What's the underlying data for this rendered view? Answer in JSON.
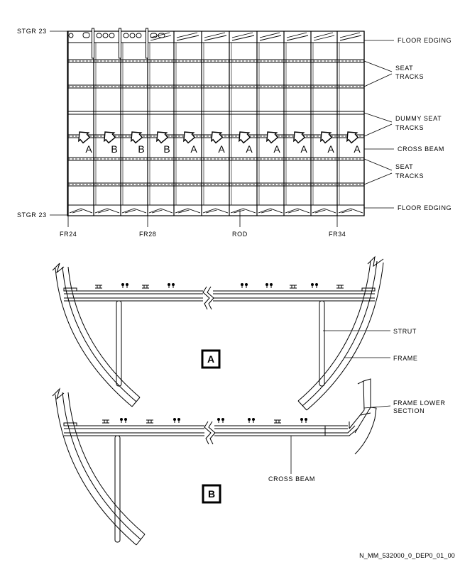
{
  "top_view": {
    "stringer_top": "STGR 23",
    "stringer_bottom": "STGR 23",
    "callouts": {
      "floor_edging_top": "FLOOR EDGING",
      "seat_tracks_upper": [
        "SEAT",
        "TRACKS"
      ],
      "dummy_seat_tracks": [
        "DUMMY SEAT",
        "TRACKS"
      ],
      "cross_beam": "CROSS BEAM",
      "seat_tracks_lower": [
        "SEAT",
        "TRACKS"
      ],
      "floor_edging_bottom": "FLOOR EDGING"
    },
    "beam_letters": [
      "A",
      "B",
      "B",
      "B",
      "A",
      "A",
      "A",
      "A",
      "A",
      "A",
      "A"
    ],
    "frame_labels": {
      "fr24": "FR24",
      "fr28": "FR28",
      "rod": "ROD",
      "fr34": "FR34"
    }
  },
  "section_a": {
    "badge": "A",
    "callouts": {
      "strut": "STRUT",
      "frame": "FRAME"
    }
  },
  "section_b": {
    "badge": "B",
    "callouts": {
      "frame_lower_section": [
        "FRAME LOWER",
        "SECTION"
      ],
      "cross_beam": "CROSS BEAM"
    }
  },
  "figure_ref": "N_MM_532000_0_DEP0_01_00",
  "line_color": "#000000"
}
